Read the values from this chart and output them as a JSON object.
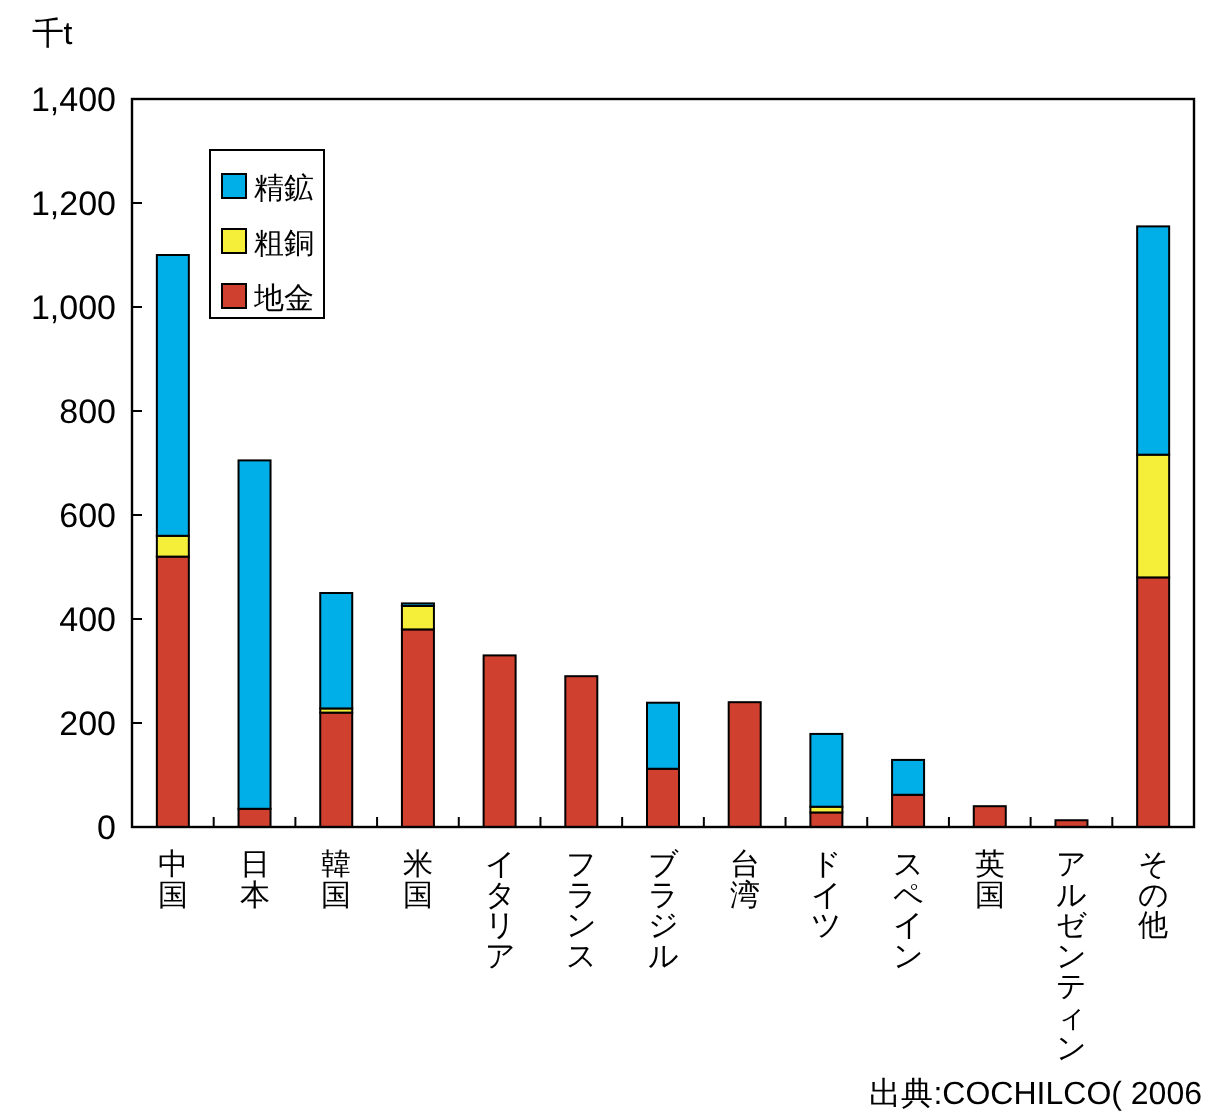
{
  "chart_data": {
    "type": "bar",
    "stacked": true,
    "ylabel": "千t",
    "categories": [
      "中国",
      "日本",
      "韓国",
      "米国",
      "イタリア",
      "フランス",
      "ブラジル",
      "台湾",
      "ドイツ",
      "スペイン",
      "英国",
      "アルゼンティン",
      "その他"
    ],
    "series": [
      {
        "name": "地金",
        "color": "#d0402e",
        "values": [
          520,
          35,
          220,
          380,
          330,
          290,
          112,
          240,
          28,
          62,
          40,
          13,
          480
        ]
      },
      {
        "name": "粗銅",
        "color": "#f5ef3a",
        "values": [
          40,
          null,
          8,
          45,
          null,
          null,
          null,
          null,
          11,
          null,
          null,
          null,
          236
        ]
      },
      {
        "name": "精鉱",
        "color": "#00aee8",
        "values": [
          540,
          670,
          222,
          5,
          null,
          null,
          127,
          null,
          140,
          67,
          null,
          null,
          439
        ]
      }
    ],
    "ylim": [
      0,
      1400
    ],
    "yticks": [
      0,
      {
        "value": 200,
        "label": "200"
      },
      {
        "value": 400,
        "label": "400"
      },
      {
        "value": 600,
        "label": "600"
      },
      {
        "value": 800,
        "label": "800"
      },
      {
        "value": 1000,
        "label": "1,000"
      },
      {
        "value": 1200,
        "label": "1,200"
      },
      {
        "value": 1400,
        "label": "1,400"
      }
    ],
    "legend": "top left",
    "grid": false,
    "annotations": [
      "出典:COCHILCO( 2006"
    ]
  }
}
